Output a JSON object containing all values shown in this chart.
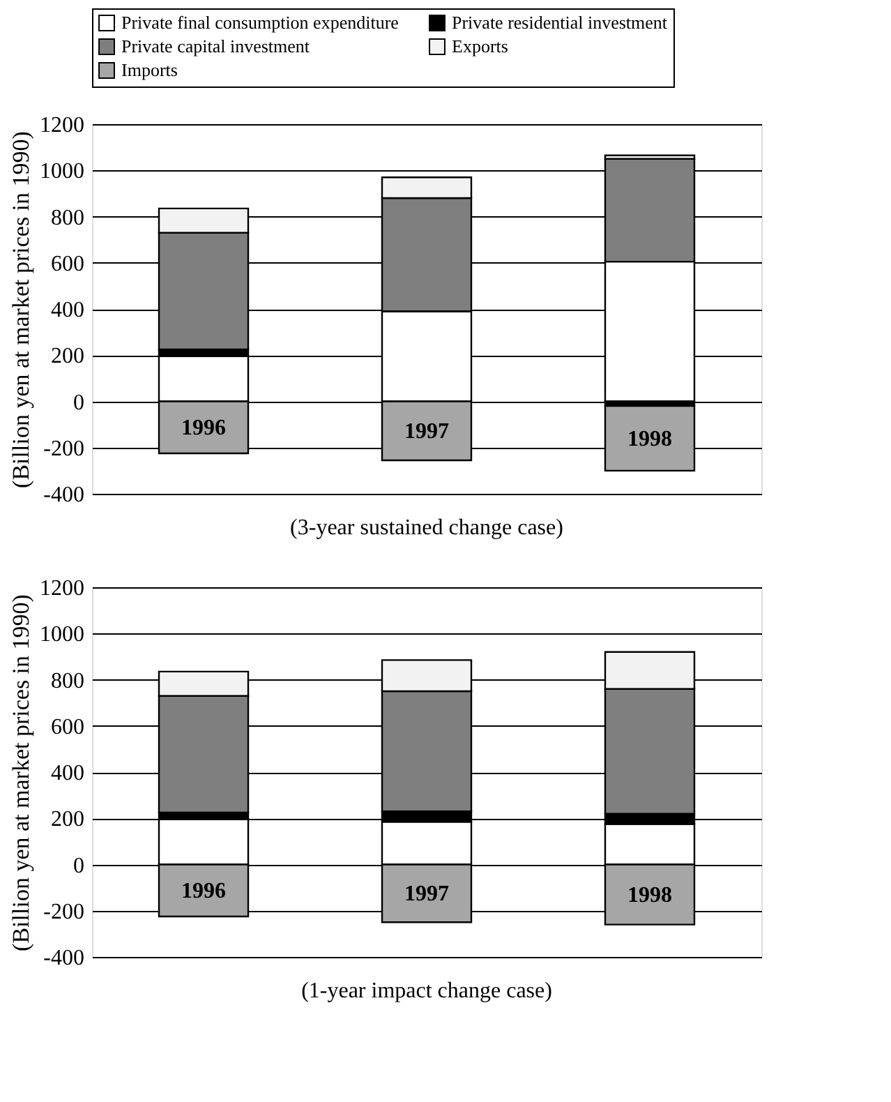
{
  "chart_data": [
    {
      "type": "bar",
      "stacked": true,
      "title": "(3-year sustained change case)",
      "ylabel": "(Billion yen at market prices in 1990)",
      "categories": [
        "1996",
        "1997",
        "1998"
      ],
      "series": [
        {
          "name": "Private final consumption expenditure",
          "color": "#ffffff",
          "values": [
            195,
            390,
            605
          ]
        },
        {
          "name": "Private residential investment",
          "color": "#000000",
          "values": [
            30,
            0,
            -20
          ]
        },
        {
          "name": "Private capital investment",
          "color": "#7f7f7f",
          "values": [
            505,
            490,
            445
          ]
        },
        {
          "name": "Exports",
          "color": "#f2f2f2",
          "values": [
            105,
            90,
            15
          ]
        },
        {
          "name": "Imports",
          "color": "#a6a6a6",
          "values": [
            -225,
            -255,
            -280
          ]
        }
      ],
      "ylim": [
        -400,
        1200
      ],
      "yticks": [
        -400,
        -200,
        0,
        200,
        400,
        600,
        800,
        1000,
        1200
      ],
      "grid": "y",
      "legend": "top"
    },
    {
      "type": "bar",
      "stacked": true,
      "title": "(1-year impact change case)",
      "ylabel": "(Billion yen at market prices in 1990)",
      "categories": [
        "1996",
        "1997",
        "1998"
      ],
      "series": [
        {
          "name": "Private final consumption expenditure",
          "color": "#ffffff",
          "values": [
            195,
            185,
            175
          ]
        },
        {
          "name": "Private residential investment",
          "color": "#000000",
          "values": [
            30,
            45,
            45
          ]
        },
        {
          "name": "Private capital investment",
          "color": "#7f7f7f",
          "values": [
            505,
            520,
            540
          ]
        },
        {
          "name": "Exports",
          "color": "#f2f2f2",
          "values": [
            105,
            135,
            160
          ]
        },
        {
          "name": "Imports",
          "color": "#a6a6a6",
          "values": [
            -225,
            -250,
            -260
          ]
        }
      ],
      "ylim": [
        -400,
        1200
      ],
      "yticks": [
        -400,
        -200,
        0,
        200,
        400,
        600,
        800,
        1000,
        1200
      ],
      "grid": "y"
    }
  ]
}
